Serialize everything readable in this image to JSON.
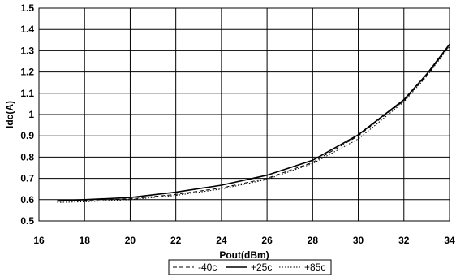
{
  "chart_data": {
    "type": "line",
    "xlabel": "Pout(dBm)",
    "ylabel": "Idc(A)",
    "xlim": [
      16,
      34
    ],
    "ylim": [
      0.5,
      1.5
    ],
    "x_ticks": [
      "16",
      "18",
      "20",
      "22",
      "24",
      "26",
      "28",
      "30",
      "32",
      "34"
    ],
    "y_ticks": [
      "0.5",
      "0.6",
      "0.7",
      "0.8",
      "0.9",
      "1",
      "1.1",
      "1.2",
      "1.3",
      "1.4",
      "1.5"
    ],
    "grid": true,
    "legend_position": "bottom",
    "series": [
      {
        "name": "-40c",
        "style": "dashed",
        "points": [
          [
            16.8,
            0.592
          ],
          [
            18,
            0.597
          ],
          [
            20,
            0.604
          ],
          [
            22,
            0.625
          ],
          [
            24,
            0.655
          ],
          [
            26,
            0.7
          ],
          [
            28,
            0.775
          ],
          [
            30,
            0.9
          ],
          [
            32,
            1.065
          ],
          [
            33,
            1.185
          ],
          [
            34,
            1.325
          ]
        ]
      },
      {
        "name": "+25c",
        "style": "solid",
        "points": [
          [
            16.8,
            0.595
          ],
          [
            18,
            0.6
          ],
          [
            20,
            0.61
          ],
          [
            22,
            0.635
          ],
          [
            24,
            0.668
          ],
          [
            26,
            0.715
          ],
          [
            28,
            0.785
          ],
          [
            30,
            0.905
          ],
          [
            32,
            1.07
          ],
          [
            33,
            1.19
          ],
          [
            34,
            1.33
          ]
        ]
      },
      {
        "name": "+85c",
        "style": "dotted",
        "points": [
          [
            16.8,
            0.587
          ],
          [
            18,
            0.59
          ],
          [
            20,
            0.6
          ],
          [
            22,
            0.62
          ],
          [
            24,
            0.65
          ],
          [
            26,
            0.695
          ],
          [
            28,
            0.77
          ],
          [
            30,
            0.885
          ],
          [
            32,
            1.06
          ],
          [
            33,
            1.18
          ],
          [
            34,
            1.32
          ]
        ]
      }
    ]
  }
}
